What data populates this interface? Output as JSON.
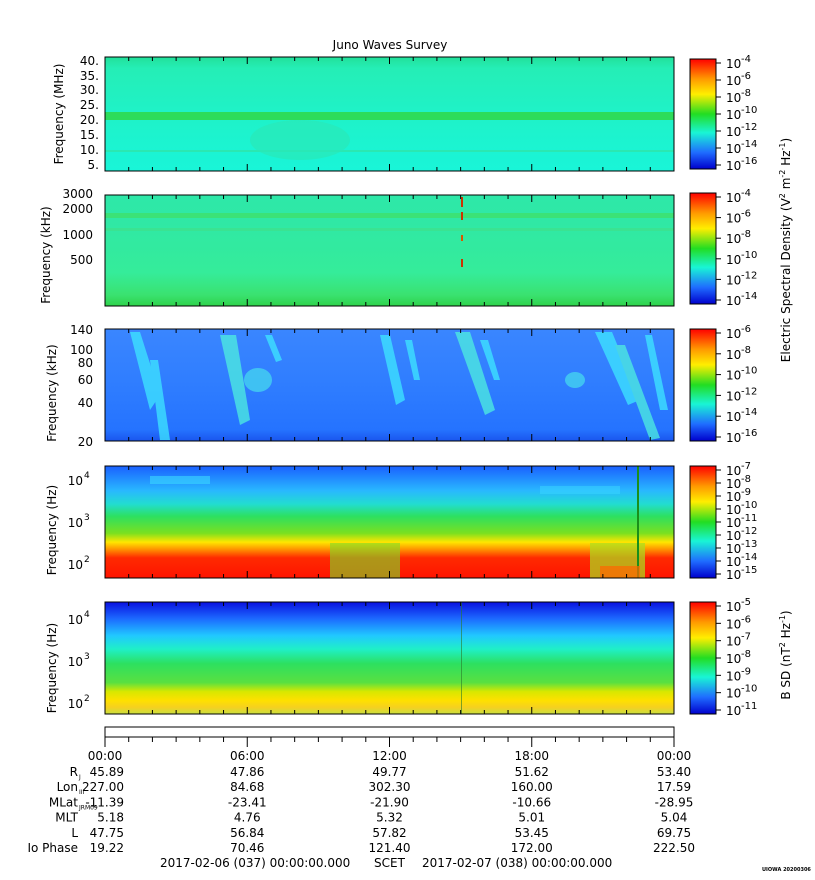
{
  "title": "Juno Waves Survey",
  "ticks": {
    "p1": [
      "40.",
      "35.",
      "30.",
      "25.",
      "20.",
      "15.",
      "10.",
      "5."
    ],
    "p2": [
      "3000",
      "2000",
      "1000",
      "500"
    ],
    "p3": [
      "140",
      "100",
      "80",
      "60",
      "40",
      "20"
    ]
  },
  "panels": [
    {
      "ylabel": "Frequency (MHz)",
      "cbar_ticks": [
        "-4",
        "-6",
        "-8",
        "-10",
        "-12",
        "-14",
        "-16"
      ]
    },
    {
      "ylabel": "Frequency (kHz)",
      "cbar_ticks": [
        "-4",
        "-6",
        "-8",
        "-10",
        "-12",
        "-14"
      ]
    },
    {
      "ylabel": "Frequency (kHz)",
      "cbar_ticks": [
        "-6",
        "-8",
        "-10",
        "-12",
        "-14",
        "-16"
      ]
    },
    {
      "ylabel": "Frequency (Hz)",
      "yticks_exp": [
        "4",
        "3",
        "2"
      ],
      "cbar_ticks": [
        "-7",
        "-8",
        "-9",
        "-10",
        "-11",
        "-12",
        "-13",
        "-14",
        "-15"
      ]
    },
    {
      "ylabel": "Frequency (Hz)",
      "yticks_exp": [
        "4",
        "3",
        "2"
      ],
      "cbar_ticks": [
        "-5",
        "-6",
        "-7",
        "-8",
        "-9",
        "-10",
        "-11"
      ]
    }
  ],
  "cbar_label_e": "Electric Spectral Density (V",
  "cbar_label_b": "B SD (nT",
  "times": [
    "00:00",
    "06:00",
    "12:00",
    "18:00",
    "00:00"
  ],
  "ephemeris": [
    {
      "label": "R",
      "sub": "J",
      "values": [
        "45.89",
        "47.86",
        "49.77",
        "51.62",
        "53.40"
      ]
    },
    {
      "label": "Lon",
      "sub": "III",
      "values": [
        "227.00",
        "84.68",
        "302.30",
        "160.00",
        "17.59"
      ]
    },
    {
      "label": "MLat",
      "sub": "JRM09",
      "values": [
        "-11.39",
        "-23.41",
        "-21.90",
        "-10.66",
        "-28.95"
      ]
    },
    {
      "label": "MLT",
      "sub": "",
      "values": [
        "5.18",
        "4.76",
        "5.32",
        "5.01",
        "5.04"
      ]
    },
    {
      "label": "L",
      "sub": "",
      "values": [
        "47.75",
        "56.84",
        "57.82",
        "53.45",
        "69.75"
      ]
    },
    {
      "label": "Io Phase",
      "sub": "",
      "values": [
        "19.22",
        "70.46",
        "121.40",
        "172.00",
        "222.50"
      ]
    }
  ],
  "footer": {
    "start": "2017-02-06 (037) 00:00:00.000",
    "scet": "SCET",
    "end": "2017-02-07 (038) 00:00:00.000"
  },
  "credit": "UIOWA 20200306",
  "colors": {
    "red": "#ff1a00",
    "orange": "#ff9900",
    "yellow": "#ffee00",
    "green": "#22dd22",
    "cyan": "#19f5d5",
    "blue": "#1f8cff",
    "navy": "#0000cc"
  },
  "chart_data": {
    "type": "heatmap",
    "title": "Juno Waves Survey",
    "x_range": [
      "2017-02-06 00:00",
      "2017-02-07 00:00"
    ],
    "x_ticks": [
      "00:00",
      "06:00",
      "12:00",
      "18:00",
      "00:00"
    ],
    "panels": [
      {
        "quantity": "electric spectral density",
        "y_range": [
          3.5,
          41
        ],
        "ylabel": "Frequency (MHz)",
        "zlim_exp": [
          -16,
          -4
        ]
      },
      {
        "quantity": "electric spectral density",
        "y_range": [
          150,
          3000
        ],
        "ylabel": "Frequency (kHz)",
        "zlim_exp": [
          -14,
          -4
        ]
      },
      {
        "quantity": "electric spectral density",
        "y_range": [
          20,
          140
        ],
        "ylabel": "Frequency (kHz)",
        "zlim_exp": [
          -16,
          -6
        ]
      },
      {
        "quantity": "electric spectral density",
        "y_range": [
          50,
          20000
        ],
        "ylabel": "Frequency (Hz)",
        "zlim_exp": [
          -15,
          -7
        ],
        "log": true
      },
      {
        "quantity": "magnetic spectral density",
        "y_range": [
          50,
          20000
        ],
        "ylabel": "Frequency (Hz)",
        "zlim_exp": [
          -11,
          -5
        ],
        "log": true
      }
    ]
  }
}
